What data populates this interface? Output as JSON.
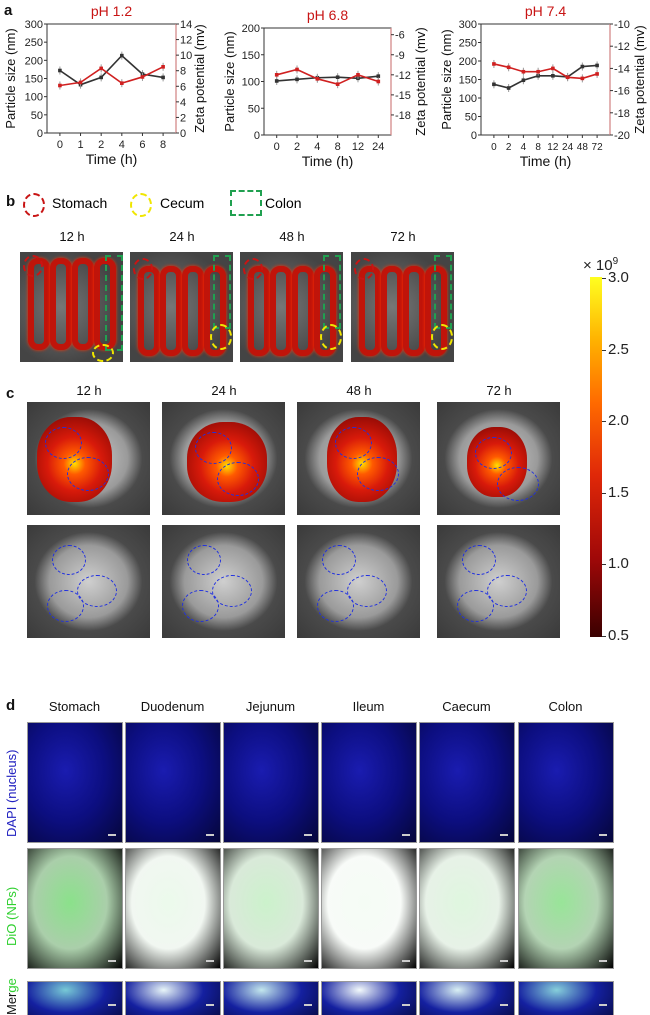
{
  "panels": {
    "a": "a",
    "b": "b",
    "c": "c",
    "d": "d"
  },
  "chart_data": [
    {
      "type": "line",
      "title": "pH  1.2",
      "xlabel": "Time (h)",
      "ylabel": "Particle size (nm)",
      "y2label": "Zeta potential (mv)",
      "categories": [
        "0",
        "1",
        "2",
        "4",
        "6",
        "8"
      ],
      "ylim": [
        0,
        300
      ],
      "yticks": [
        0,
        50,
        100,
        150,
        200,
        250,
        300
      ],
      "y2lim": [
        0,
        14
      ],
      "y2ticks": [
        0,
        2,
        4,
        6,
        8,
        10,
        12,
        14
      ],
      "series": [
        {
          "axis": "left",
          "color": "#333333",
          "values": [
            172,
            133,
            153,
            213,
            162,
            153
          ]
        },
        {
          "axis": "right",
          "color": "#d02020",
          "values": [
            6.1,
            6.5,
            8.3,
            6.4,
            7.2,
            8.5
          ]
        }
      ]
    },
    {
      "type": "line",
      "title": "pH 6.8",
      "xlabel": "Time (h)",
      "ylabel": "Particle size (nm)",
      "y2label": "Zeta potential (mv)",
      "categories": [
        "0",
        "2",
        "4",
        "8",
        "12",
        "24"
      ],
      "ylim": [
        0,
        200
      ],
      "yticks": [
        0,
        50,
        100,
        150,
        200
      ],
      "y2lim": [
        -21,
        -5
      ],
      "y2ticks": [
        -18,
        -15,
        -12,
        -9,
        -6
      ],
      "series": [
        {
          "axis": "left",
          "color": "#333333",
          "values": [
            101,
            104,
            107,
            108,
            106,
            110
          ]
        },
        {
          "axis": "right",
          "color": "#d02020",
          "values": [
            -12.0,
            -11.2,
            -12.6,
            -13.4,
            -12.0,
            -13.0
          ]
        }
      ]
    },
    {
      "type": "line",
      "title": "pH 7.4",
      "xlabel": "Time (h)",
      "ylabel": "Particle size (nm)",
      "y2label": "Zeta potential (mv)",
      "categories": [
        "0",
        "2",
        "4",
        "8",
        "12",
        "24",
        "48",
        "72"
      ],
      "ylim": [
        0,
        300
      ],
      "yticks": [
        0,
        50,
        100,
        150,
        200,
        250,
        300
      ],
      "y2lim": [
        -20,
        -10
      ],
      "y2ticks": [
        -20,
        -18,
        -16,
        -14,
        -12,
        -10
      ],
      "series": [
        {
          "axis": "left",
          "color": "#333333",
          "values": [
            137,
            127,
            148,
            160,
            160,
            157,
            185,
            188
          ]
        },
        {
          "axis": "right",
          "color": "#d02020",
          "values": [
            -13.6,
            -13.9,
            -14.3,
            -14.3,
            -14.0,
            -14.8,
            -14.9,
            -14.5
          ]
        }
      ]
    }
  ],
  "legend_b": [
    {
      "label": "Stomach",
      "color": "#c81414"
    },
    {
      "label": "Cecum",
      "color": "#f0e600"
    },
    {
      "label": "Colon",
      "color": "#20a050"
    }
  ],
  "timepoints": [
    "12 h",
    "24 h",
    "48 h",
    "72 h"
  ],
  "colorbar": {
    "multiplier": "× 10",
    "exponent": "9",
    "ticks": [
      "3.0",
      "2.5",
      "2.0",
      "1.5",
      "1.0",
      "0.5"
    ],
    "range": [
      0.5,
      3.0
    ],
    "colormap": "hot"
  },
  "panel_d": {
    "columns": [
      "Stomach",
      "Duodenum",
      "Jejunum",
      "Ileum",
      "Caecum",
      "Colon"
    ],
    "rows": [
      {
        "label": "DAPI (nucleus)",
        "color": "#2020c0"
      },
      {
        "label": "DiO (NPs)",
        "color": "#30d030"
      },
      {
        "label": "Merge",
        "parts": [
          "Mer",
          "ge"
        ]
      }
    ]
  }
}
